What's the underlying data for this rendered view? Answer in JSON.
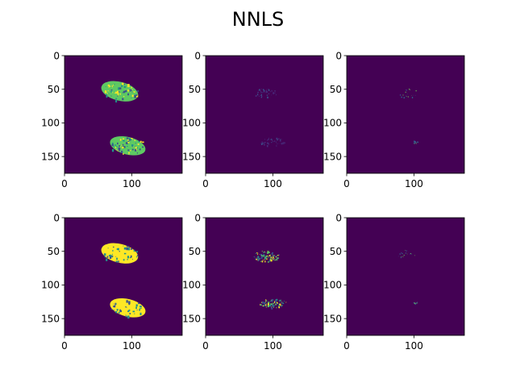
{
  "figure": {
    "title": "NNLS"
  },
  "colors": {
    "background": "#440154",
    "mid_blue": "#3b528b",
    "teal": "#21918c",
    "green": "#5ec962",
    "yellow": "#fde725",
    "axis": "#000000"
  },
  "chart_data": [
    {
      "type": "heatmap",
      "panel": "row1-col1",
      "title": "",
      "xlabel": "",
      "ylabel": "",
      "xlim": [
        0,
        175
      ],
      "ylim": [
        175,
        0
      ],
      "x_ticks": [
        0,
        100
      ],
      "y_ticks": [
        0,
        50,
        100,
        150
      ],
      "colormap": "viridis",
      "regions": [
        {
          "name": "upper",
          "cx": 82,
          "cy": 53,
          "rx": 28,
          "ry": 14,
          "tone": "green"
        },
        {
          "name": "lower",
          "cx": 94,
          "cy": 134,
          "rx": 27,
          "ry": 13,
          "tone": "green"
        }
      ],
      "grid": false
    },
    {
      "type": "heatmap",
      "panel": "row1-col2",
      "title": "",
      "xlabel": "",
      "ylabel": "",
      "xlim": [
        0,
        175
      ],
      "ylim": [
        175,
        0
      ],
      "x_ticks": [
        0,
        100
      ],
      "y_ticks": [
        0,
        50,
        100,
        150
      ],
      "colormap": "viridis",
      "regions": [
        {
          "name": "upper",
          "cx": 88,
          "cy": 55,
          "rx": 18,
          "ry": 8,
          "tone": "faint"
        },
        {
          "name": "lower",
          "cx": 100,
          "cy": 128,
          "rx": 20,
          "ry": 7,
          "tone": "faint"
        }
      ],
      "grid": false
    },
    {
      "type": "heatmap",
      "panel": "row1-col3",
      "title": "",
      "xlabel": "",
      "ylabel": "",
      "xlim": [
        0,
        175
      ],
      "ylim": [
        175,
        0
      ],
      "x_ticks": [
        0,
        100
      ],
      "y_ticks": [
        0,
        50,
        100,
        150
      ],
      "colormap": "viridis",
      "regions": [
        {
          "name": "upper",
          "cx": 90,
          "cy": 56,
          "rx": 17,
          "ry": 7,
          "tone": "speck"
        },
        {
          "name": "lower",
          "cx": 102,
          "cy": 128,
          "rx": 4,
          "ry": 3,
          "tone": "speck"
        }
      ],
      "grid": false
    },
    {
      "type": "heatmap",
      "panel": "row2-col1",
      "title": "",
      "xlabel": "",
      "ylabel": "",
      "xlim": [
        0,
        175
      ],
      "ylim": [
        175,
        0
      ],
      "x_ticks": [
        0,
        100
      ],
      "y_ticks": [
        0,
        50,
        100,
        150
      ],
      "colormap": "viridis",
      "regions": [
        {
          "name": "upper",
          "cx": 82,
          "cy": 53,
          "rx": 28,
          "ry": 14,
          "tone": "yellow"
        },
        {
          "name": "lower",
          "cx": 94,
          "cy": 134,
          "rx": 27,
          "ry": 13,
          "tone": "yellow"
        }
      ],
      "grid": false
    },
    {
      "type": "heatmap",
      "panel": "row2-col2",
      "title": "",
      "xlabel": "",
      "ylabel": "",
      "xlim": [
        0,
        175
      ],
      "ylim": [
        175,
        0
      ],
      "x_ticks": [
        0,
        100
      ],
      "y_ticks": [
        0,
        50,
        100,
        150
      ],
      "colormap": "viridis",
      "regions": [
        {
          "name": "upper",
          "cx": 90,
          "cy": 57,
          "rx": 20,
          "ry": 9,
          "tone": "bright"
        },
        {
          "name": "lower",
          "cx": 100,
          "cy": 127,
          "rx": 21,
          "ry": 7,
          "tone": "bright"
        }
      ],
      "grid": false
    },
    {
      "type": "heatmap",
      "panel": "row2-col3",
      "title": "",
      "xlabel": "",
      "ylabel": "",
      "xlim": [
        0,
        175
      ],
      "ylim": [
        175,
        0
      ],
      "x_ticks": [
        0,
        100
      ],
      "y_ticks": [
        0,
        50,
        100,
        150
      ],
      "colormap": "viridis",
      "regions": [
        {
          "name": "upper",
          "cx": 88,
          "cy": 55,
          "rx": 16,
          "ry": 7,
          "tone": "speck"
        },
        {
          "name": "lower",
          "cx": 102,
          "cy": 126,
          "rx": 3,
          "ry": 2,
          "tone": "speck"
        }
      ],
      "grid": false
    }
  ]
}
